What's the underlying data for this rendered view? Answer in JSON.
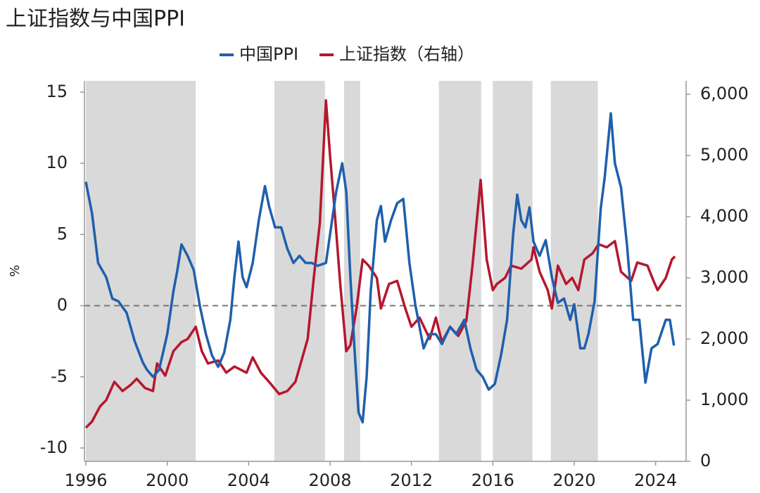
{
  "chart_data": {
    "type": "line",
    "title": "上证指数与中国PPI",
    "ylabel": "%",
    "xlim": [
      1995.93,
      2025.5
    ],
    "xticks": [
      1996,
      2000,
      2004,
      2008,
      2012,
      2016,
      2020,
      2024
    ],
    "ylim": [
      -10.94,
      15.79
    ],
    "yticks": [
      -10,
      -5,
      0,
      5,
      10,
      15
    ],
    "y2lim": [
      0,
      6220
    ],
    "y2ticks": [
      0,
      {
        "value": 1000,
        "label": "1,000"
      },
      {
        "value": 2000,
        "label": "2,000"
      },
      {
        "value": 3000,
        "label": "3,000"
      },
      {
        "value": 4000,
        "label": "4,000"
      },
      {
        "value": 5000,
        "label": "5,000"
      },
      {
        "value": 6000,
        "label": "6,000"
      }
    ],
    "zero_line": 0,
    "shaded_periods": [
      [
        1996,
        2001.4
      ],
      [
        2005.26,
        2007.75
      ],
      [
        2008.69,
        2009.48
      ],
      [
        2013.35,
        2015.43
      ],
      [
        2016.0,
        2017.95
      ],
      [
        2018.85,
        2021.16
      ]
    ],
    "shade_color": "#d9d9d9",
    "series": [
      {
        "name": "中国PPI",
        "color": "#1f5fad",
        "x": [
          1996.0,
          1996.3,
          1996.6,
          1997.0,
          1997.3,
          1997.6,
          1998.0,
          1998.4,
          1998.8,
          1999.0,
          1999.3,
          1999.6,
          2000.0,
          2000.3,
          2000.5,
          2000.7,
          2001.0,
          2001.3,
          2001.6,
          2001.9,
          2002.2,
          2002.5,
          2002.8,
          2003.1,
          2003.3,
          2003.5,
          2003.7,
          2003.9,
          2004.2,
          2004.5,
          2004.8,
          2005.0,
          2005.3,
          2005.6,
          2005.9,
          2006.2,
          2006.5,
          2006.8,
          2007.1,
          2007.4,
          2007.8,
          2008.0,
          2008.3,
          2008.6,
          2008.8,
          2009.0,
          2009.2,
          2009.4,
          2009.6,
          2009.8,
          2010.0,
          2010.3,
          2010.5,
          2010.7,
          2011.0,
          2011.3,
          2011.6,
          2011.9,
          2012.2,
          2012.6,
          2012.9,
          2013.2,
          2013.5,
          2013.9,
          2014.2,
          2014.6,
          2014.9,
          2015.2,
          2015.5,
          2015.8,
          2016.1,
          2016.4,
          2016.7,
          2017.0,
          2017.2,
          2017.4,
          2017.6,
          2017.8,
          2018.0,
          2018.3,
          2018.6,
          2018.9,
          2019.2,
          2019.5,
          2019.8,
          2020.0,
          2020.3,
          2020.5,
          2020.7,
          2021.0,
          2021.3,
          2021.5,
          2021.8,
          2022.0,
          2022.3,
          2022.6,
          2022.9,
          2023.2,
          2023.5,
          2023.8,
          2024.1,
          2024.5,
          2024.7,
          2024.9
        ],
        "values": [
          8.7,
          6.5,
          3,
          2,
          0.5,
          0.3,
          -0.5,
          -2.5,
          -4,
          -4.5,
          -5,
          -4.5,
          -2,
          1,
          2.5,
          4.3,
          3.5,
          2.5,
          0,
          -2,
          -3.5,
          -4.3,
          -3.3,
          -1,
          2,
          4.5,
          2,
          1.3,
          3,
          6,
          8.4,
          7,
          5.5,
          5.5,
          4,
          3,
          3.5,
          3,
          3,
          2.8,
          3,
          5,
          8,
          10,
          8,
          2,
          -3,
          -7.5,
          -8.2,
          -5,
          1,
          6,
          7,
          4.5,
          6,
          7.2,
          7.5,
          3,
          0,
          -3,
          -2,
          -2,
          -2.7,
          -1.5,
          -2,
          -1,
          -3,
          -4.5,
          -5,
          -5.9,
          -5.5,
          -3.5,
          -1,
          5,
          7.8,
          6,
          5.5,
          6.9,
          4.5,
          3.5,
          4.6,
          2,
          0.2,
          0.5,
          -1,
          0.1,
          -3,
          -3,
          -2,
          0.3,
          6.8,
          9,
          13.5,
          10,
          8.3,
          4.2,
          -1,
          -1,
          -5.4,
          -3,
          -2.7,
          -1,
          -1,
          -2.8
        ]
      },
      {
        "name": "上证指数（右轴）",
        "color": "#b5172d",
        "axis": "y2",
        "x": [
          1996.0,
          1996.3,
          1996.7,
          1997.0,
          1997.4,
          1997.8,
          1998.2,
          1998.5,
          1998.9,
          1999.3,
          1999.5,
          1999.9,
          2000.3,
          2000.7,
          2001.0,
          2001.4,
          2001.7,
          2002.0,
          2002.5,
          2002.9,
          2003.3,
          2003.9,
          2004.2,
          2004.6,
          2005.0,
          2005.5,
          2005.9,
          2006.3,
          2006.6,
          2006.9,
          2007.2,
          2007.5,
          2007.8,
          2008.0,
          2008.2,
          2008.5,
          2008.8,
          2009.0,
          2009.3,
          2009.6,
          2009.9,
          2010.3,
          2010.5,
          2010.9,
          2011.3,
          2011.7,
          2012.0,
          2012.4,
          2012.9,
          2013.2,
          2013.5,
          2013.9,
          2014.3,
          2014.7,
          2015.0,
          2015.4,
          2015.7,
          2016.0,
          2016.2,
          2016.6,
          2016.9,
          2017.4,
          2017.9,
          2018.0,
          2018.3,
          2018.7,
          2018.9,
          2019.2,
          2019.6,
          2019.9,
          2020.2,
          2020.5,
          2020.9,
          2021.2,
          2021.6,
          2022.0,
          2022.3,
          2022.8,
          2023.1,
          2023.6,
          2023.9,
          2024.1,
          2024.5,
          2024.8,
          2024.95
        ],
        "values": [
          550,
          650,
          900,
          1000,
          1300,
          1150,
          1250,
          1350,
          1200,
          1150,
          1600,
          1400,
          1800,
          1950,
          2000,
          2200,
          1800,
          1600,
          1650,
          1450,
          1550,
          1450,
          1700,
          1450,
          1300,
          1100,
          1150,
          1300,
          1650,
          2000,
          3000,
          3900,
          5900,
          5000,
          4200,
          2900,
          1800,
          1900,
          2500,
          3300,
          3200,
          3000,
          2500,
          2900,
          2950,
          2500,
          2200,
          2350,
          2000,
          2350,
          1950,
          2200,
          2050,
          2300,
          3200,
          4600,
          3300,
          2800,
          2900,
          3000,
          3200,
          3150,
          3300,
          3500,
          3100,
          2800,
          2500,
          3200,
          2900,
          3000,
          2800,
          3300,
          3400,
          3550,
          3500,
          3600,
          3100,
          2950,
          3250,
          3200,
          2950,
          2800,
          3000,
          3300,
          3350
        ]
      }
    ]
  }
}
